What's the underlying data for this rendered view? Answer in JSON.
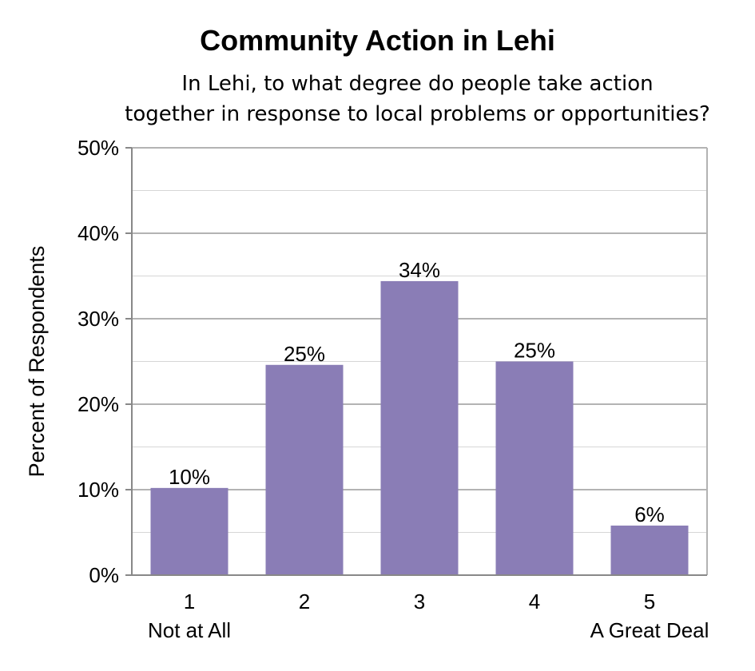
{
  "chart_data": {
    "type": "bar",
    "title": "Community Action in Lehi",
    "subtitle_lines": [
      "In Lehi, to what degree do people take action",
      "together in response to local problems or opportunities?"
    ],
    "ylabel": "Percent of Respondents",
    "xlabel": "",
    "categories": [
      "1",
      "2",
      "3",
      "4",
      "5"
    ],
    "category_sublabels": [
      "Not at All",
      "",
      "",
      "",
      "A Great Deal"
    ],
    "values": [
      10.2,
      24.6,
      34.4,
      25.0,
      5.8
    ],
    "data_labels": [
      "10%",
      "25%",
      "34%",
      "25%",
      "6%"
    ],
    "ylim": [
      0,
      50
    ],
    "yticks": [
      0,
      10,
      20,
      30,
      40,
      50
    ],
    "ytick_labels": [
      "0%",
      "10%",
      "20%",
      "30%",
      "40%",
      "50%"
    ],
    "grid": true,
    "bar_color": "#8a7db6",
    "grid_color": "#b3b3b3"
  }
}
